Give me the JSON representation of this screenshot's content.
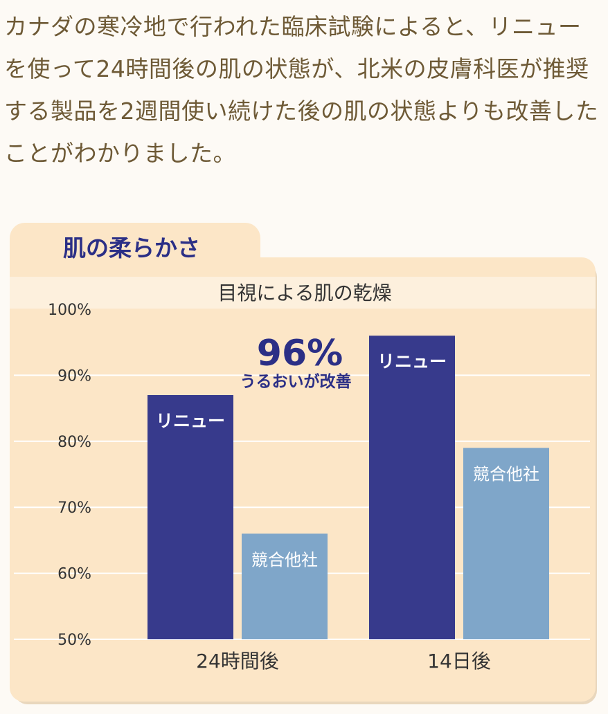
{
  "intro_text": "カナダの寒冷地で行われた臨床試験によると、リニューを使って24時間後の肌の状態が、北米の皮膚科医が推奨する製品を2週間使い続けた後の肌の状態よりも改善したことがわかりました。",
  "panel": {
    "tab_title": "肌の柔らかさ"
  },
  "colors": {
    "page_bg": "#fdfaf5",
    "panel_bg": "#fce6c7",
    "tab_text": "#2b2f86",
    "renew": "#373a8c",
    "competitor": "#7fa6c9",
    "intro_text": "#6e5a36"
  },
  "callout": {
    "value": "96%",
    "text": "うるおいが改善"
  },
  "chart_data": {
    "type": "bar",
    "title": "目視による肌の乾燥",
    "categories": [
      "24時間後",
      "14日後"
    ],
    "series": [
      {
        "name": "リニュー",
        "values": [
          87,
          96
        ]
      },
      {
        "name": "競合他社",
        "values": [
          66,
          79
        ]
      }
    ],
    "ylim": [
      50,
      100
    ],
    "yticks": [
      {
        "value": 100,
        "label": "100%"
      },
      {
        "value": 90,
        "label": "90%"
      },
      {
        "value": 80,
        "label": "80%"
      },
      {
        "value": 70,
        "label": "70%"
      },
      {
        "value": 60,
        "label": "60%"
      },
      {
        "value": 50,
        "label": "50%"
      }
    ],
    "grid": true,
    "legend": "none"
  }
}
